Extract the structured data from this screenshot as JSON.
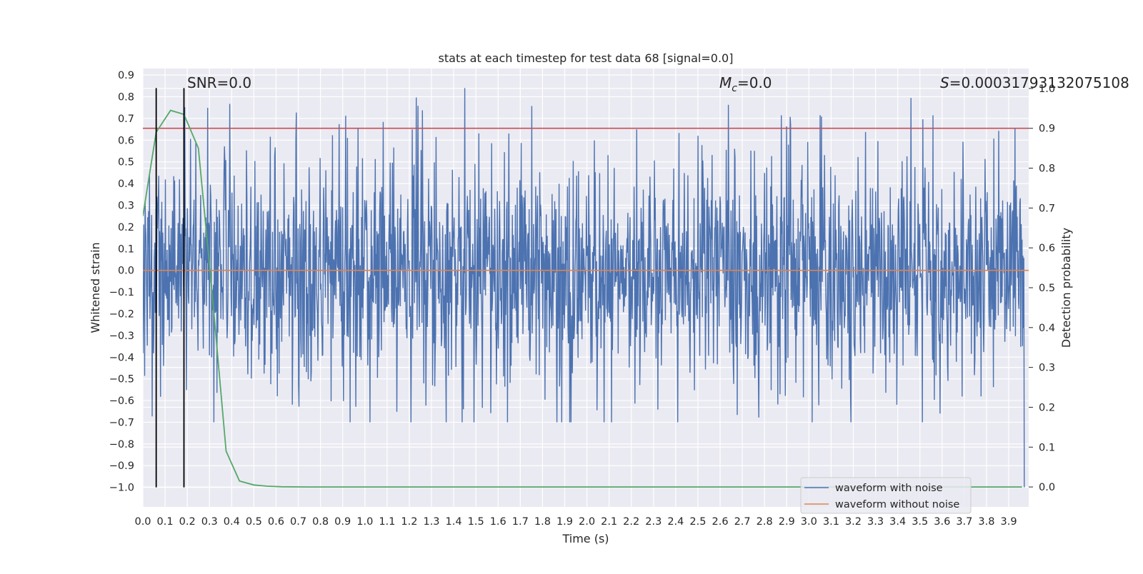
{
  "chart_data": {
    "type": "line",
    "title": "stats at each timestep for test data 68 [signal=0.0]",
    "xlabel": "Time (s)",
    "ylabel": "Whitened strain",
    "y2label": "Detection probability",
    "xlim": [
      0.0,
      3.99
    ],
    "ylim": [
      -1.09,
      0.93
    ],
    "y2lim": [
      -0.05,
      1.05
    ],
    "grid": true,
    "x_ticks": [
      "0.0",
      "0.1",
      "0.2",
      "0.3",
      "0.4",
      "0.5",
      "0.6",
      "0.7",
      "0.8",
      "0.9",
      "1.0",
      "1.1",
      "1.2",
      "1.3",
      "1.4",
      "1.5",
      "1.6",
      "1.7",
      "1.8",
      "1.9",
      "2.0",
      "2.1",
      "2.2",
      "2.3",
      "2.4",
      "2.5",
      "2.6",
      "2.7",
      "2.8",
      "2.9",
      "3.0",
      "3.1",
      "3.2",
      "3.3",
      "3.4",
      "3.5",
      "3.6",
      "3.7",
      "3.8",
      "3.9"
    ],
    "y_ticks": [
      "0.9",
      "0.8",
      "0.7",
      "0.6",
      "0.5",
      "0.4",
      "0.3",
      "0.2",
      "0.1",
      "0.0",
      "−0.1",
      "−0.2",
      "−0.3",
      "−0.4",
      "−0.5",
      "−0.6",
      "−0.7",
      "−0.8",
      "−0.9",
      "−1.0"
    ],
    "y2_ticks": [
      "1.0",
      "0.9",
      "0.8",
      "0.7",
      "0.6",
      "0.5",
      "0.4",
      "0.3",
      "0.2",
      "0.1",
      "0.0"
    ],
    "annotations": {
      "snr": "SNR=0.0",
      "mc_symbol": "M",
      "mc_sub": "c",
      "mc_value": "=0.0",
      "s_symbol": "S",
      "s_value": "=0.00031793132075108"
    },
    "threshold": {
      "axis": "right",
      "value": 0.9,
      "color": "#c44e52"
    },
    "vlines": {
      "x": [
        0.06,
        0.185
      ],
      "ymin": -1.0,
      "ymax": 0.84,
      "color": "#000000"
    },
    "noise_envelope": {
      "typical_amplitude": 0.45,
      "upper_peak": 0.84,
      "lower_min": -1.0,
      "samples": 2000
    },
    "series": [
      {
        "name": "waveform with noise",
        "axis": "left",
        "color": "#4c72b0",
        "description": "whitened strain noise across 0.0–3.99 s"
      },
      {
        "name": "waveform without noise",
        "axis": "left",
        "color": "#dd8452",
        "x": [
          0.0,
          3.99
        ],
        "values": [
          0.0,
          0.0
        ]
      },
      {
        "name": "detection probability",
        "axis": "right",
        "color": "#55a868",
        "x": [
          0.0,
          0.06,
          0.125,
          0.185,
          0.25,
          0.31,
          0.375,
          0.435,
          0.5,
          0.56,
          0.625,
          0.75,
          1.0,
          2.0,
          3.0,
          3.96
        ],
        "values": [
          0.68,
          0.89,
          0.945,
          0.935,
          0.85,
          0.5,
          0.09,
          0.015,
          0.005,
          0.002,
          0.0005,
          0.0,
          0.0,
          0.0,
          0.0,
          0.0
        ]
      }
    ],
    "legend": {
      "placement": "lower-right",
      "entries": [
        "waveform with noise",
        "waveform without noise"
      ]
    }
  }
}
